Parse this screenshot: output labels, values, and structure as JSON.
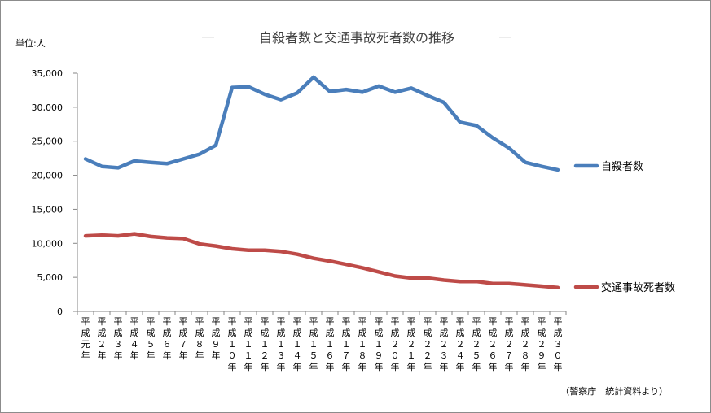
{
  "chart_data": {
    "type": "line",
    "title": "自殺者数と交通事故死者数の推移",
    "unit_label": "単位:人",
    "source_note": "（警察庁　統計資料より）",
    "ylim": [
      0,
      35000
    ],
    "yticks": [
      "0",
      "5,000",
      "10,000",
      "15,000",
      "20,000",
      "25,000",
      "30,000",
      "35,000"
    ],
    "ytick_values": [
      0,
      5000,
      10000,
      15000,
      20000,
      25000,
      30000,
      35000
    ],
    "categories": [
      "平成元年",
      "平成2年",
      "平成3年",
      "平成4年",
      "平成5年",
      "平成6年",
      "平成7年",
      "平成8年",
      "平成9年",
      "平成10年",
      "平成11年",
      "平成12年",
      "平成13年",
      "平成14年",
      "平成15年",
      "平成16年",
      "平成17年",
      "平成18年",
      "平成19年",
      "平成20年",
      "平成21年",
      "平成22年",
      "平成23年",
      "平成24年",
      "平成25年",
      "平成26年",
      "平成27年",
      "平成28年",
      "平成29年",
      "平成30年"
    ],
    "category_labels": [
      "平成元年",
      "平成２年",
      "平成３年",
      "平成４年",
      "平成５年",
      "平成６年",
      "平成７年",
      "平成８年",
      "平成９年",
      "平成１０年",
      "平成１１年",
      "平成１２年",
      "平成１３年",
      "平成１４年",
      "平成１５年",
      "平成１６年",
      "平成１７年",
      "平成１８年",
      "平成１９年",
      "平成２０年",
      "平成２１年",
      "平成２２年",
      "平成２３年",
      "平成２４年",
      "平成２５年",
      "平成２６年",
      "平成２７年",
      "平成２８年",
      "平成２９年",
      "平成３０年"
    ],
    "legend_position": "right",
    "grid": false,
    "series": [
      {
        "name": "自殺者数",
        "color": "#4a7ebb",
        "values": [
          22400,
          21300,
          21100,
          22100,
          21900,
          21700,
          22400,
          23100,
          24400,
          32900,
          33000,
          31900,
          31100,
          32100,
          34400,
          32300,
          32600,
          32200,
          33100,
          32200,
          32800,
          31700,
          30700,
          27800,
          27300,
          25500,
          24000,
          21900,
          21300,
          20800
        ]
      },
      {
        "name": "交通事故死者数",
        "color": "#be4b48",
        "values": [
          11100,
          11200,
          11100,
          11400,
          11000,
          10800,
          10700,
          9900,
          9600,
          9200,
          9000,
          9000,
          8800,
          8400,
          7800,
          7400,
          6900,
          6400,
          5800,
          5200,
          4900,
          4900,
          4600,
          4400,
          4400,
          4100,
          4100,
          3900,
          3700,
          3500
        ]
      }
    ]
  }
}
